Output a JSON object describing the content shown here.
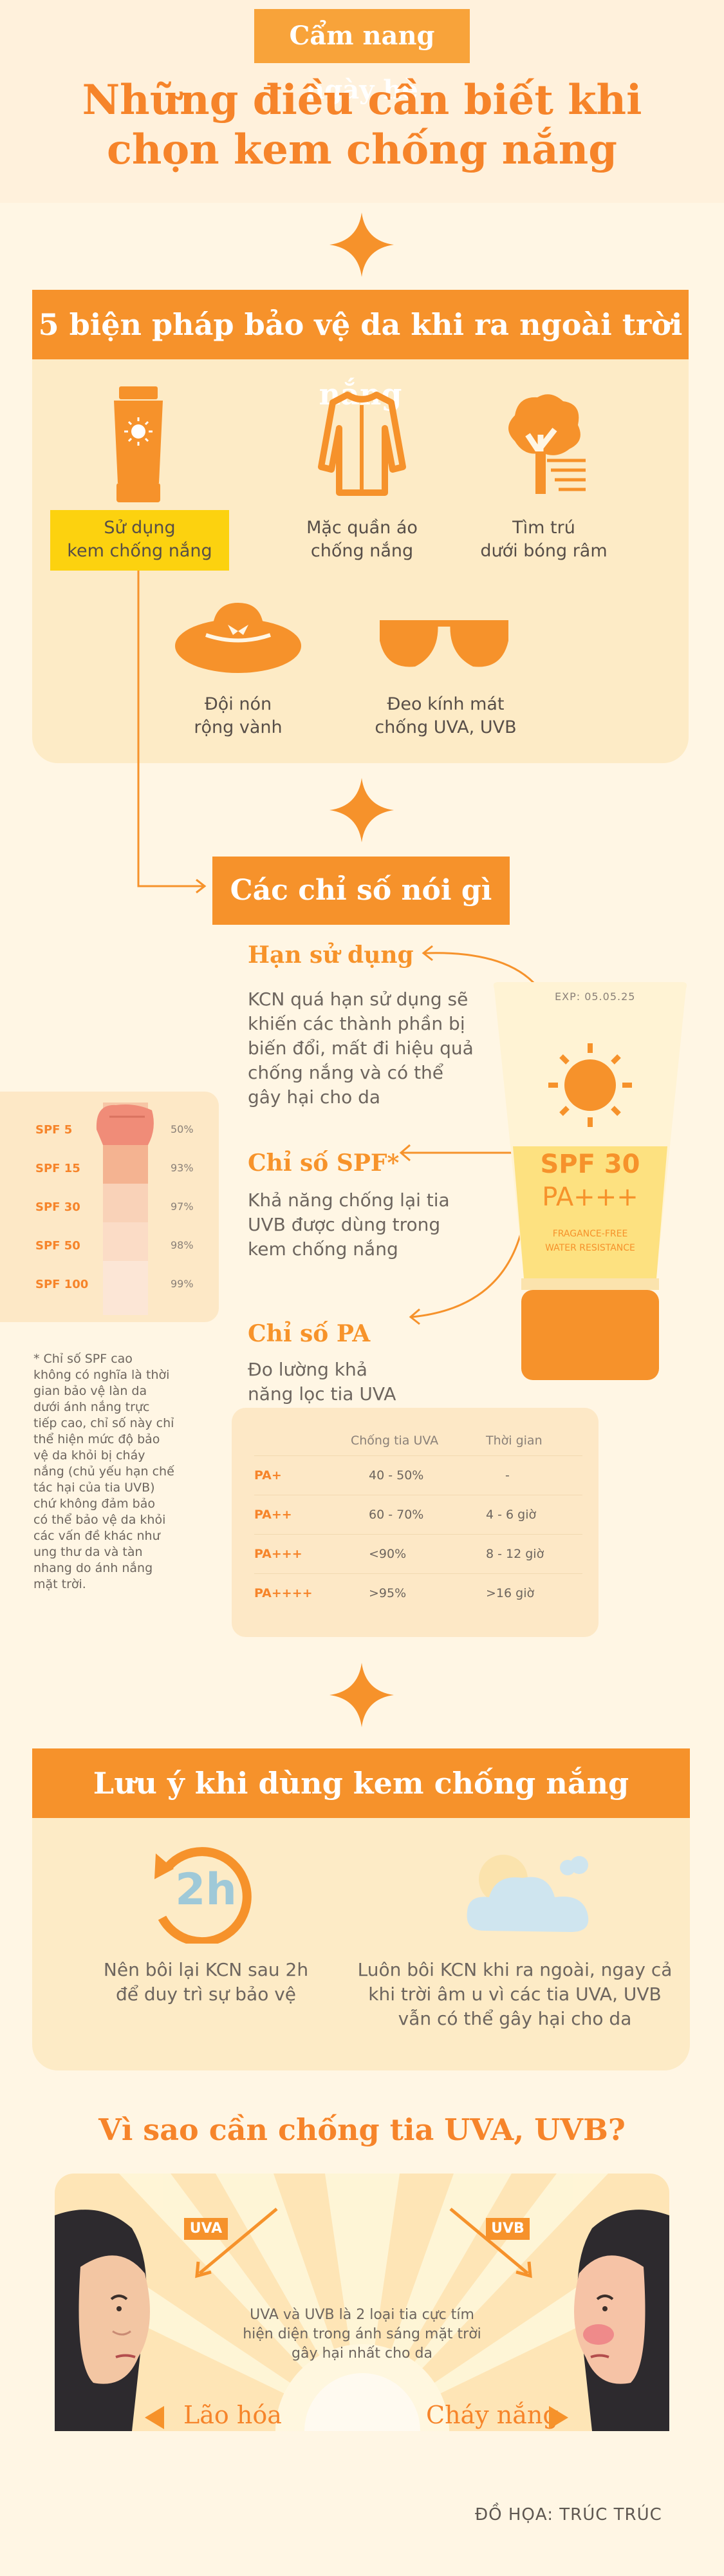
{
  "header": {
    "tag": "Cẩm nang ngày hè",
    "title_line1": "Những điều cần biết khi",
    "title_line2": "chọn kem chống nắng"
  },
  "section1": {
    "title": "5 biện pháp bảo vệ da khi ra ngoài trời nắng",
    "items": [
      {
        "icon": "sunscreen-tube-icon",
        "label_line1": "Sử dụng",
        "label_line2": "kem chống nắng"
      },
      {
        "icon": "jacket-icon",
        "label_line1": "Mặc quần áo",
        "label_line2": "chống nắng"
      },
      {
        "icon": "tree-shade-icon",
        "label_line1": "Tìm trú",
        "label_line2": "dưới bóng râm"
      },
      {
        "icon": "wide-brim-hat-icon",
        "label_line1": "Đội nón",
        "label_line2": "rộng vành"
      },
      {
        "icon": "sunglasses-icon",
        "label_line1": "Đeo kính mát",
        "label_line2": "chống UVA, UVB"
      }
    ]
  },
  "section2": {
    "title": "Các chỉ số nói gì",
    "expiry": {
      "heading": "Hạn sử dụng",
      "lines": [
        "KCN quá hạn sử dụng sẽ",
        "khiến các thành phần bị",
        "biến đổi, mất đi hiệu quả",
        "chống nắng và có thể",
        "gây hại cho da"
      ]
    },
    "spf": {
      "heading": "Chỉ số SPF*",
      "lines": [
        "Khả năng chống lại tia",
        "UVB được dùng trong",
        "kem chống nắng"
      ]
    },
    "pa": {
      "heading": "Chỉ số PA",
      "lines": [
        "Đo lường khả",
        "năng lọc tia UVA"
      ]
    },
    "tube": {
      "exp": "EXP: 05.05.25",
      "spf": "SPF 30",
      "pa": "PA+++",
      "note1": "FRAGANCE-FREE",
      "note2": "WATER RESISTANCE"
    },
    "spf_levels": [
      {
        "name": "SPF 5",
        "pct": "50%"
      },
      {
        "name": "SPF 15",
        "pct": "93%"
      },
      {
        "name": "SPF 30",
        "pct": "97%"
      },
      {
        "name": "SPF 50",
        "pct": "98%"
      },
      {
        "name": "SPF 100",
        "pct": "99%"
      }
    ],
    "footnote": [
      "* Chỉ số SPF cao",
      "không có nghĩa là thời",
      "gian bảo vệ làn da",
      "dưới ánh nắng trực",
      "tiếp cao, chỉ số này chỉ",
      "thể hiện mức độ bảo",
      "vệ da khỏi bị cháy",
      "nắng (chủ yếu hạn chế",
      "tác hại của tia UVB)",
      "chứ không đảm bảo",
      "có thể bảo vệ da khỏi",
      "các vấn đề khác như",
      "ung thư da và tàn",
      "nhang do ánh nắng",
      "mặt trời."
    ],
    "pa_table": {
      "headers": [
        "",
        "Chống tia UVA",
        "Thời gian"
      ],
      "rows": [
        [
          "PA+",
          "40 - 50%",
          "-"
        ],
        [
          "PA++",
          "60 - 70%",
          "4 - 6 giờ"
        ],
        [
          "PA+++",
          "<90%",
          "8 - 12 giờ"
        ],
        [
          "PA++++",
          ">95%",
          ">16 giờ"
        ]
      ]
    }
  },
  "section3": {
    "title": "Lưu ý khi dùng kem chống nắng",
    "clock_text": "2h",
    "tip1": [
      "Nên bôi lại KCN sau 2h",
      "để duy trì sự bảo vệ"
    ],
    "tip2": [
      "Luôn bôi KCN khi ra ngoài, ngay cả",
      "khi trời âm u vì các tia UVA, UVB",
      "vẫn có thể gây hại cho da"
    ]
  },
  "section4": {
    "title": "Vì sao cần chống tia UVA, UVB?",
    "uva": "UVA",
    "uvb": "UVB",
    "desc": [
      "UVA và UVB là 2 loại tia cực tím",
      "hiện diện trong ánh sáng mặt trời",
      "gây hại nhất cho da"
    ],
    "left_label": "Lão hóa",
    "right_label": "Cháy nắng"
  },
  "credit": "ĐỒ HỌA: TRÚC TRÚC",
  "colors": {
    "orange": "#f6922b",
    "yellow": "#fcd20f",
    "cream": "#fff6e4",
    "panel": "#fdebc6"
  }
}
